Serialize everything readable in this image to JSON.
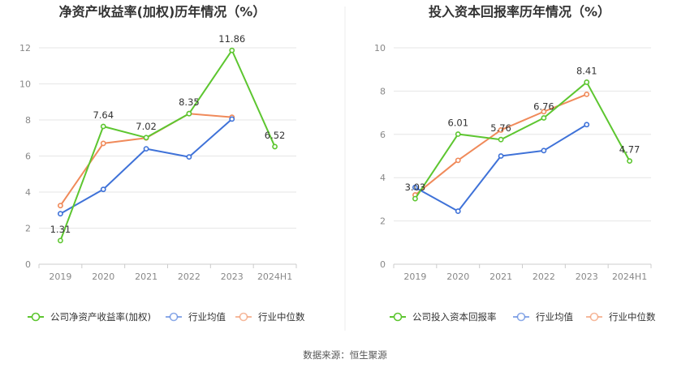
{
  "source_label": "数据来源：恒生聚源",
  "chart_data": [
    {
      "type": "line",
      "title": "净资产收益率(加权)历年情况（%）",
      "categories": [
        "2019",
        "2020",
        "2021",
        "2022",
        "2023",
        "2024H1"
      ],
      "ylim": [
        0,
        12
      ],
      "yticks": [
        0,
        2,
        4,
        6,
        8,
        10,
        12
      ],
      "grid": true,
      "legend_position": "bottom",
      "series": [
        {
          "name": "公司净资产收益率(加权)",
          "color": "#5dc630",
          "values": [
            1.31,
            7.64,
            7.02,
            8.35,
            11.86,
            6.52
          ],
          "labels": [
            "1.31",
            "7.64",
            "7.02",
            "8.35",
            "11.86",
            "6.52"
          ]
        },
        {
          "name": "行业均值",
          "color": "#3f72d8",
          "values": [
            2.8,
            4.15,
            6.4,
            5.95,
            8.05,
            null
          ]
        },
        {
          "name": "行业中位数",
          "color": "#f08a5a",
          "values": [
            3.25,
            6.7,
            7.0,
            8.35,
            8.15,
            null
          ]
        }
      ]
    },
    {
      "type": "line",
      "title": "投入资本回报率历年情况（%）",
      "categories": [
        "2019",
        "2020",
        "2021",
        "2022",
        "2023",
        "2024H1"
      ],
      "ylim": [
        0,
        10
      ],
      "yticks": [
        0,
        2,
        4,
        6,
        8,
        10
      ],
      "grid": true,
      "legend_position": "bottom",
      "series": [
        {
          "name": "公司投入资本回报率",
          "color": "#5dc630",
          "values": [
            3.03,
            6.01,
            5.76,
            6.76,
            8.41,
            4.77
          ],
          "labels": [
            "3.03",
            "6.01",
            "5.76",
            "6.76",
            "8.41",
            "4.77"
          ]
        },
        {
          "name": "行业均值",
          "color": "#3f72d8",
          "values": [
            3.55,
            2.45,
            5.0,
            5.25,
            6.45,
            null
          ]
        },
        {
          "name": "行业中位数",
          "color": "#f08a5a",
          "values": [
            3.2,
            4.8,
            6.2,
            7.05,
            7.85,
            null
          ]
        }
      ]
    }
  ]
}
